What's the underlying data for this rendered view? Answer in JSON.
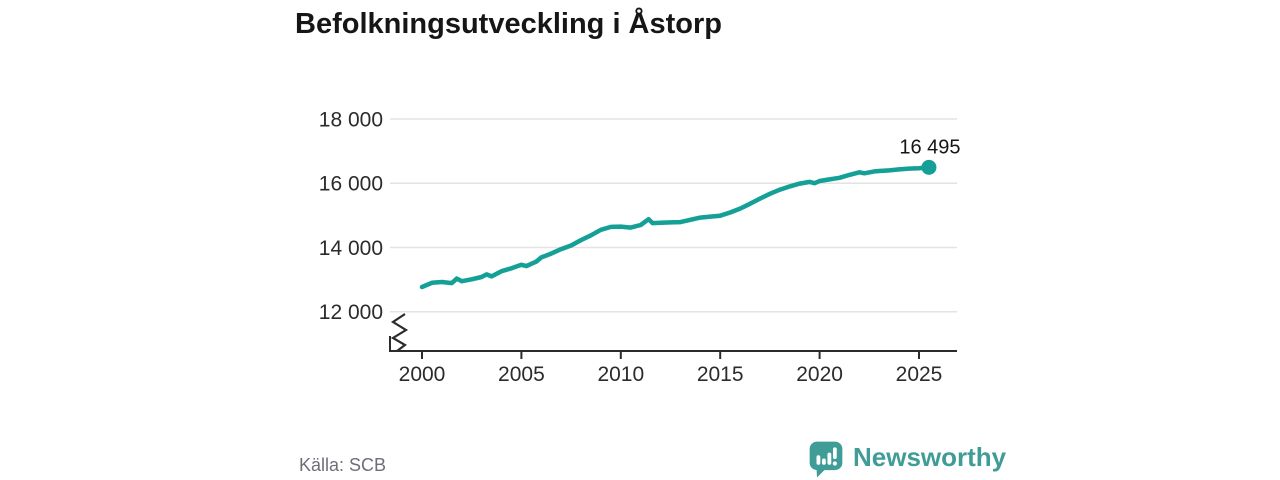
{
  "title": "Befolkningsutveckling i Åstorp",
  "source": "Källa: SCB",
  "brand": {
    "name": "Newsworthy",
    "color": "#3f9c96",
    "icon": "bar-chart-speech-bubble"
  },
  "colors": {
    "line": "#14a096",
    "grid": "#e3e3e3",
    "axis": "#2b2b2b",
    "tick_text": "#2b2b2b",
    "annotation_text": "#161616",
    "source_text": "#6e6e78"
  },
  "chart_data": {
    "type": "line",
    "title": "Befolkningsutveckling i Åstorp",
    "xlabel": "",
    "ylabel": "",
    "legend": "none",
    "grid": "horizontal",
    "axis_break_bottom_left": true,
    "x_tick_years": [
      2000,
      2005,
      2010,
      2015,
      2020,
      2025
    ],
    "x_tick_labels": [
      "2000",
      "2005",
      "2010",
      "2015",
      "2020",
      "2025"
    ],
    "y_tick_values": [
      12000,
      14000,
      16000,
      18000
    ],
    "y_tick_labels": [
      "12 000",
      "14 000",
      "16 000",
      "18 000"
    ],
    "xlim": [
      1999.4,
      2026.9
    ],
    "ylim": [
      11500,
      18300
    ],
    "end_label": "16 495",
    "end_value": 16495,
    "series": [
      {
        "name": "Folkmängd",
        "points": [
          [
            2000.0,
            12770
          ],
          [
            2000.5,
            12900
          ],
          [
            2001.0,
            12925
          ],
          [
            2001.5,
            12890
          ],
          [
            2001.75,
            13030
          ],
          [
            2002.0,
            12950
          ],
          [
            2002.5,
            13010
          ],
          [
            2003.0,
            13080
          ],
          [
            2003.25,
            13160
          ],
          [
            2003.5,
            13100
          ],
          [
            2004.0,
            13260
          ],
          [
            2004.5,
            13350
          ],
          [
            2005.0,
            13460
          ],
          [
            2005.25,
            13420
          ],
          [
            2005.75,
            13560
          ],
          [
            2006.0,
            13690
          ],
          [
            2006.5,
            13810
          ],
          [
            2007.0,
            13950
          ],
          [
            2007.5,
            14060
          ],
          [
            2008.0,
            14230
          ],
          [
            2008.5,
            14380
          ],
          [
            2009.0,
            14550
          ],
          [
            2009.5,
            14640
          ],
          [
            2010.0,
            14650
          ],
          [
            2010.5,
            14620
          ],
          [
            2011.0,
            14700
          ],
          [
            2011.4,
            14880
          ],
          [
            2011.6,
            14760
          ],
          [
            2012.0,
            14770
          ],
          [
            2012.5,
            14780
          ],
          [
            2013.0,
            14790
          ],
          [
            2013.5,
            14860
          ],
          [
            2014.0,
            14930
          ],
          [
            2014.5,
            14960
          ],
          [
            2015.0,
            14990
          ],
          [
            2015.5,
            15090
          ],
          [
            2016.0,
            15210
          ],
          [
            2016.5,
            15360
          ],
          [
            2017.0,
            15520
          ],
          [
            2017.5,
            15670
          ],
          [
            2018.0,
            15800
          ],
          [
            2018.5,
            15900
          ],
          [
            2019.0,
            15990
          ],
          [
            2019.5,
            16040
          ],
          [
            2019.75,
            16000
          ],
          [
            2020.0,
            16070
          ],
          [
            2020.5,
            16120
          ],
          [
            2021.0,
            16170
          ],
          [
            2021.5,
            16260
          ],
          [
            2022.0,
            16340
          ],
          [
            2022.25,
            16310
          ],
          [
            2022.75,
            16370
          ],
          [
            2023.0,
            16380
          ],
          [
            2023.5,
            16400
          ],
          [
            2024.0,
            16430
          ],
          [
            2024.5,
            16455
          ],
          [
            2025.0,
            16465
          ],
          [
            2025.5,
            16495
          ]
        ]
      }
    ]
  }
}
